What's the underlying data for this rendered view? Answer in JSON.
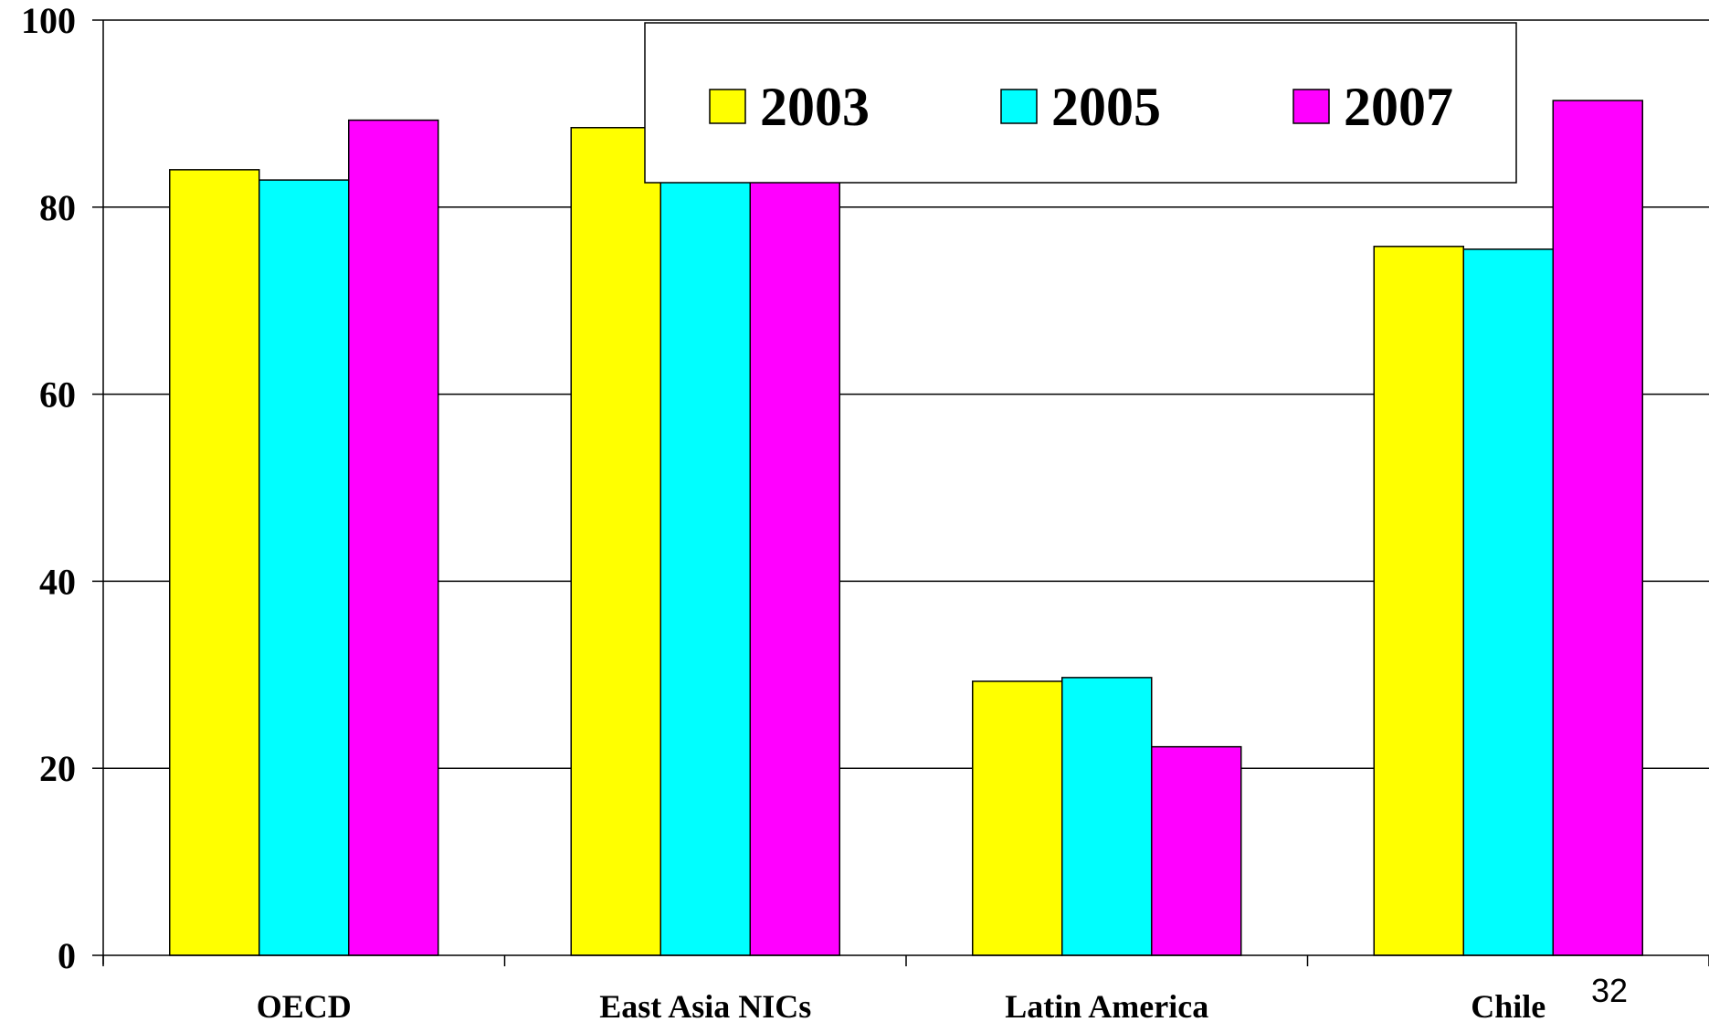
{
  "page_number": "32",
  "chart_data": {
    "type": "bar",
    "title": "",
    "xlabel": "",
    "ylabel": "",
    "ylim": [
      0,
      100
    ],
    "yticks": [
      0,
      20,
      40,
      60,
      80,
      100
    ],
    "grid": true,
    "legend_position": "top",
    "categories": [
      "OECD",
      "East Asia NICs",
      "Latin America",
      "Chile"
    ],
    "series": [
      {
        "name": "2003",
        "color": "#ffff00",
        "values": [
          84,
          88.5,
          29.3,
          75.8
        ]
      },
      {
        "name": "2005",
        "color": "#00ffff",
        "values": [
          82.9,
          88,
          29.7,
          75.5
        ]
      },
      {
        "name": "2007",
        "color": "#ff00ff",
        "values": [
          89.3,
          89,
          22.3,
          91.4
        ]
      }
    ]
  }
}
